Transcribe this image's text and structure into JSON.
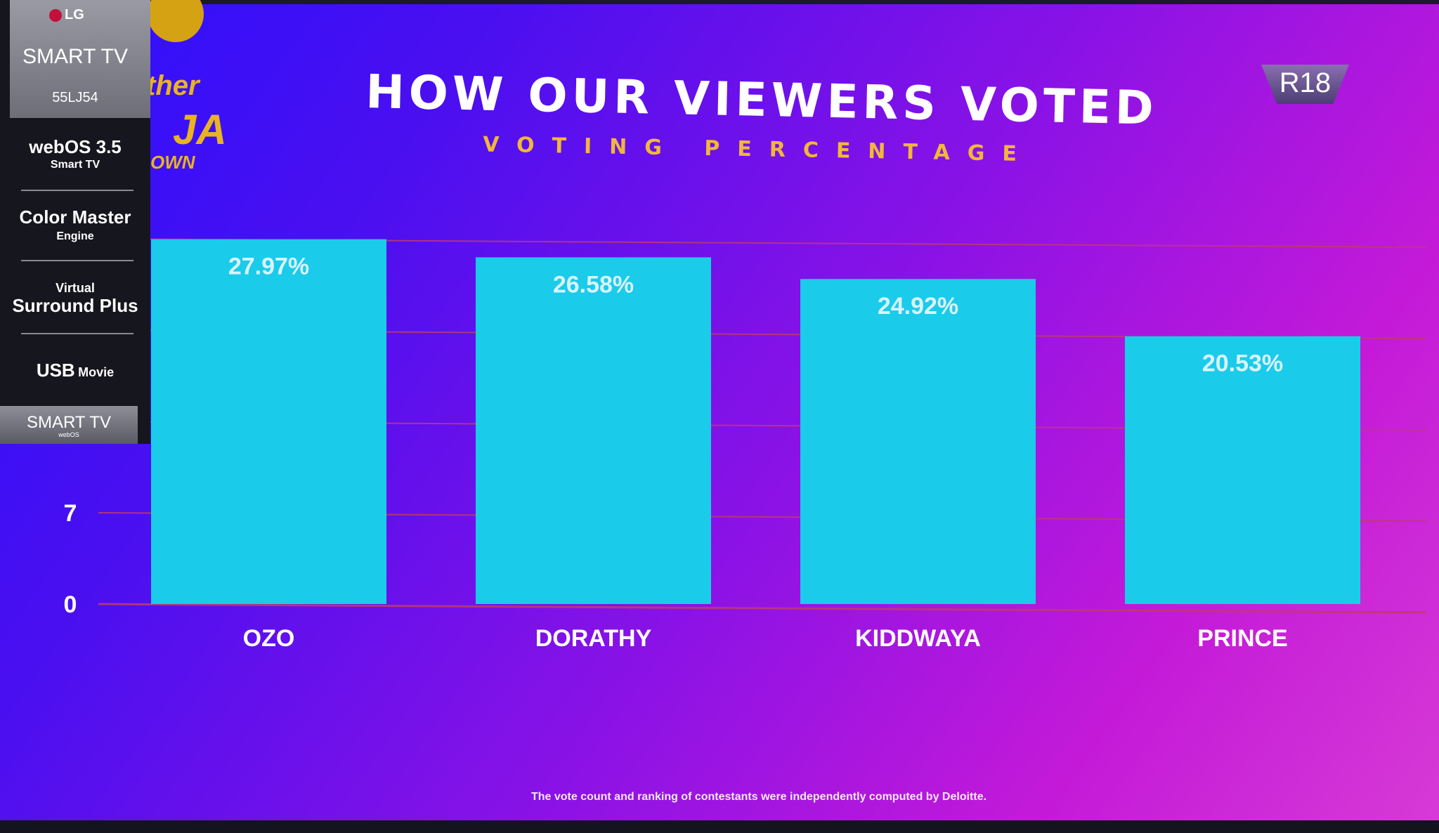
{
  "sticker": {
    "brand": "LG",
    "product": "SMART TV",
    "model": "55LJ54",
    "os": "webOS 3.5",
    "os_sub": "Smart TV",
    "color_engine": "Color Master",
    "color_engine_sub": "Engine",
    "sound_top": "Virtual",
    "sound": "Surround Plus",
    "usb": "USB",
    "usb_sub": "Movie",
    "footer": "SMART TV",
    "footer_sub": "webOS"
  },
  "show_logo": {
    "line1": "ther",
    "line2": "JA",
    "line3": "OWN"
  },
  "badge": "R18",
  "footnote": "The vote count and ranking of contestants were independently computed by Deloitte.",
  "colors": {
    "bar": "#1bcbea",
    "gridline": "#c03a6e",
    "label": "#ffffff",
    "subtitle": "#f2b73a"
  },
  "chart_data": {
    "type": "bar",
    "title": "HOW OUR VIEWERS VOTED",
    "subtitle": "VOTING PERCENTAGE",
    "categories": [
      "OZO",
      "DORATHY",
      "KIDDWAYA",
      "PRINCE"
    ],
    "values": [
      27.97,
      26.58,
      24.92,
      20.53
    ],
    "data_labels": [
      "27.97%",
      "26.58%",
      "24.92%",
      "20.53%"
    ],
    "yticks_visible": [
      "0",
      "7"
    ],
    "ylim": [
      0,
      28
    ],
    "grid": true,
    "legend": "none"
  }
}
